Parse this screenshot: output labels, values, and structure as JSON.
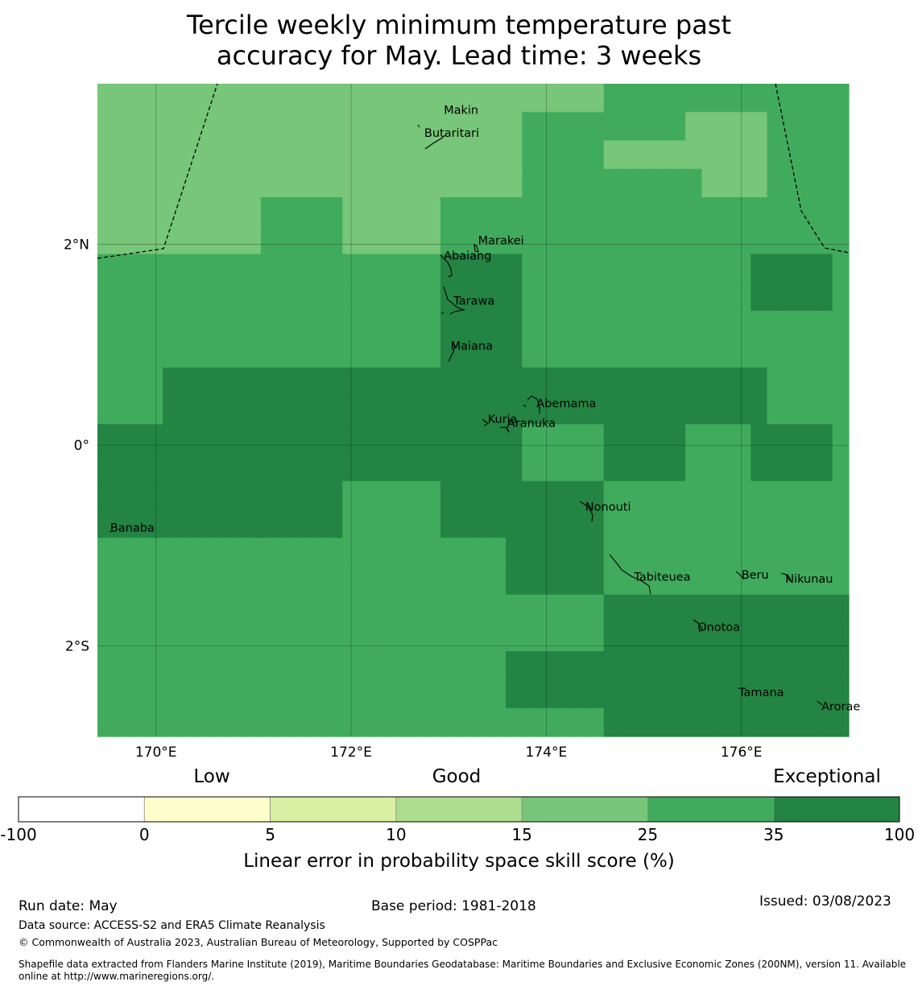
{
  "title": {
    "line1": "Tercile weekly minimum temperature past",
    "line2": "accuracy for May. Lead time: 3 weeks"
  },
  "map": {
    "lon_range": [
      169.4,
      177.1
    ],
    "lat_range": [
      -2.9,
      3.6
    ],
    "lon_ticks": [
      {
        "value": 170,
        "label": "170°E"
      },
      {
        "value": 172,
        "label": "172°E"
      },
      {
        "value": 174,
        "label": "174°E"
      },
      {
        "value": 176,
        "label": "176°E"
      }
    ],
    "lat_ticks": [
      {
        "value": 2,
        "label": "2°N"
      },
      {
        "value": 0,
        "label": "0°"
      },
      {
        "value": -2,
        "label": "2°S"
      }
    ],
    "cell_category_rows_north_to_south": [
      "4444444444444444444444444444444555555555555555",
      "4444444444444444444444444455555555554444455555",
      "4444444444444444444444444455555444444444455555",
      "4444444444444444444444444455555555555444455555",
      "4444444444555554444445555555555555555555555555",
      "4444444444555554444445555555555555555555555555",
      "5555555555555555555556666655555555555555666665",
      "5555555555555555555556666655555555555555666665",
      "5555555555555555555556666655555555555555555555",
      "5555555555555555555556666655555555555555555555",
      "5555666666666666666666666666666666666666655555",
      "5555666666666666666666666666666666666666655555",
      "6666666666666666666666666655555666665555666665",
      "6666666666666666666666666655555666665555666665",
      "6666666666666665555556666666666555555555555555",
      "6666666666666665555556666666666555555555555555",
      "5555555555555555555555555666666555555555555555",
      "5555555555555555555555555666666555555555555555",
      "5555555555555555555555555555555666666666666666",
      "5555555555555555555555555555555666666666666666",
      "5555555555555555555555555666666666666666666666",
      "5555555555555555555555555666666666666666666666",
      "5555555555555555555555555555555666666666666666"
    ],
    "islands": [
      {
        "name": "Makin",
        "lon": 172.95,
        "lat": 3.3
      },
      {
        "name": "Butaritari",
        "lon": 172.75,
        "lat": 3.07
      },
      {
        "name": "Marakei",
        "lon": 173.3,
        "lat": 2.0
      },
      {
        "name": "Abaiang",
        "lon": 172.95,
        "lat": 1.85
      },
      {
        "name": "Tarawa",
        "lon": 173.05,
        "lat": 1.4
      },
      {
        "name": "Maiana",
        "lon": 173.02,
        "lat": 0.95
      },
      {
        "name": "Abemama",
        "lon": 173.9,
        "lat": 0.38
      },
      {
        "name": "Kuria",
        "lon": 173.4,
        "lat": 0.22
      },
      {
        "name": "Aranuka",
        "lon": 173.6,
        "lat": 0.18
      },
      {
        "name": "Banaba",
        "lon": 169.53,
        "lat": -0.86
      },
      {
        "name": "Nonouti",
        "lon": 174.4,
        "lat": -0.65
      },
      {
        "name": "Tabiteuea",
        "lon": 174.9,
        "lat": -1.35
      },
      {
        "name": "Beru",
        "lon": 176.0,
        "lat": -1.33
      },
      {
        "name": "Nikunau",
        "lon": 176.45,
        "lat": -1.37
      },
      {
        "name": "Onotoa",
        "lon": 175.55,
        "lat": -1.85
      },
      {
        "name": "Tamana",
        "lon": 175.97,
        "lat": -2.5
      },
      {
        "name": "Arorae",
        "lon": 176.82,
        "lat": -2.64
      }
    ]
  },
  "colorbar": {
    "category_labels": [
      "Low",
      "Good",
      "Exceptional"
    ],
    "boundaries": [
      "-100",
      "0",
      "5",
      "10",
      "15",
      "25",
      "35",
      "100"
    ],
    "colors": [
      "#ffffff",
      "#ffffcc",
      "#d9f0a3",
      "#addd8e",
      "#78c679",
      "#41ab5d",
      "#238443"
    ],
    "label": "Linear error in probability space skill score (%)"
  },
  "footer": {
    "run_date": "Run date: May",
    "base_period": "Base period: 1981-2018",
    "issued": "Issued: 03/08/2023",
    "data_source": "Data source: ACCESS-S2 and ERA5 Climate Reanalysis",
    "copyright": "© Commonwealth of Australia 2023, Australian Bureau of Meteorology, Supported by COSPPac",
    "shapefile_line1": "Shapefile data extracted from Flanders Marine Institute (2019), Maritime Boundaries Geodatabase: Maritime Boundaries and Exclusive Economic Zones (200NM), version 11. Available",
    "shapefile_line2": "online at http://www.marineregions.org/."
  }
}
